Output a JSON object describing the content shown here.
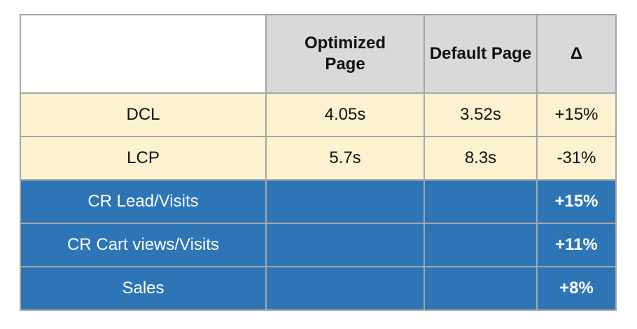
{
  "table": {
    "columns": [
      {
        "label": ""
      },
      {
        "label": "Optimized Page"
      },
      {
        "label": "Default Page"
      },
      {
        "label": "Δ"
      }
    ],
    "rows": [
      {
        "label": "DCL",
        "optimized": "4.05s",
        "default": "3.52s",
        "delta": "+15%",
        "theme": "cream"
      },
      {
        "label": "LCP",
        "optimized": "5.7s",
        "default": "8.3s",
        "delta": "-31%",
        "theme": "cream"
      },
      {
        "label": "CR Lead/Visits",
        "optimized": "",
        "default": "",
        "delta": "+15%",
        "theme": "blue"
      },
      {
        "label": "CR Cart views/Visits",
        "optimized": "",
        "default": "",
        "delta": "+11%",
        "theme": "blue"
      },
      {
        "label": "Sales",
        "optimized": "",
        "default": "",
        "delta": "+8%",
        "theme": "blue"
      }
    ],
    "colors": {
      "header_bg": "#d9d9d9",
      "cream_bg": "#fbf2d0",
      "blue_bg": "#2e75b6",
      "border": "#a6a6a6",
      "text_dark": "#111111",
      "text_light": "#ffffff"
    }
  }
}
